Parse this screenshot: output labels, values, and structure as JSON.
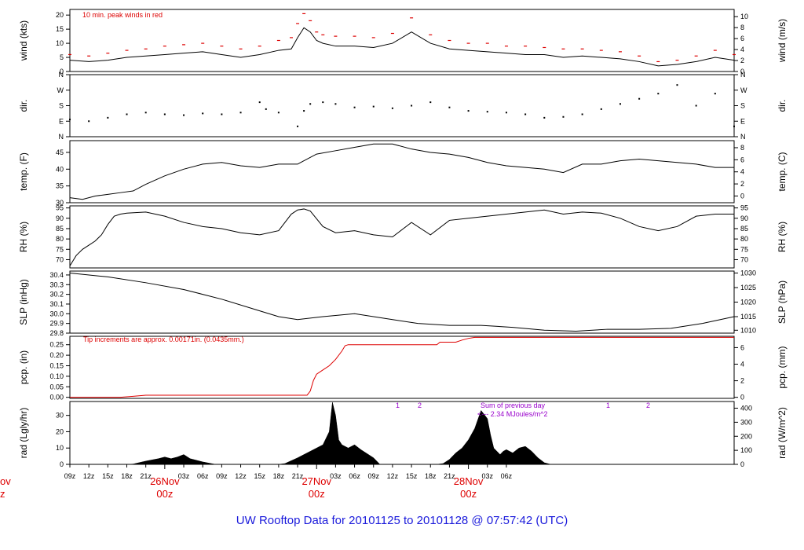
{
  "title": "UW Rooftop Data for 20101125  to  20101128 @ 07:57:42  (UTC)",
  "colors": {
    "line": "#000000",
    "peak": "#dd0000",
    "precip": "#dd0000",
    "note": "#9900cc",
    "title": "#1a1adb"
  },
  "chart_data": [
    {
      "type": "line",
      "name": "wind",
      "ylabel_left": "wind (kts)",
      "ylabel_right": "wind (m/s)",
      "ylim": [
        0,
        22
      ],
      "yticks_left": [
        0,
        5,
        10,
        15,
        20
      ],
      "yticks_right": [
        {
          "label": "0",
          "v": 0
        },
        {
          "label": "2",
          "v": 3.89
        },
        {
          "label": "4",
          "v": 7.78
        },
        {
          "label": "6",
          "v": 11.66
        },
        {
          "label": "8",
          "v": 15.55
        },
        {
          "label": "10",
          "v": 19.44
        }
      ],
      "annotation": "10 min. peak winds in red",
      "series": [
        {
          "name": "wind speed",
          "x": [
            0,
            3,
            6,
            9,
            12,
            15,
            18,
            21,
            24,
            27,
            30,
            33,
            35,
            36,
            37,
            38,
            39,
            40,
            42,
            45,
            48,
            51,
            54,
            57,
            60,
            63,
            66,
            69,
            72,
            75,
            78,
            81,
            84,
            87,
            90,
            93,
            96,
            99,
            102,
            105
          ],
          "y": [
            4,
            3.5,
            4,
            5,
            5.5,
            6,
            6.5,
            7,
            6,
            5,
            6,
            7.5,
            8,
            12,
            15.5,
            14,
            11,
            10,
            9,
            9,
            8.5,
            10,
            14,
            10,
            8,
            7.5,
            7,
            6.5,
            6,
            6,
            5,
            5.5,
            5,
            4.5,
            3.5,
            2,
            2.5,
            3.5,
            5,
            4
          ]
        },
        {
          "name": "10 min. peak",
          "x": [
            0,
            3,
            6,
            9,
            12,
            15,
            18,
            21,
            24,
            27,
            30,
            33,
            35,
            36,
            37,
            38,
            39,
            40,
            42,
            45,
            48,
            51,
            54,
            57,
            60,
            63,
            66,
            69,
            72,
            75,
            78,
            81,
            84,
            87,
            90,
            93,
            96,
            99,
            102,
            105
          ],
          "y": [
            6,
            5.5,
            6.5,
            7.5,
            8,
            9,
            9.5,
            10,
            9,
            8,
            9,
            11,
            12,
            17,
            20.5,
            18,
            14,
            13,
            12.5,
            12.5,
            12,
            13.5,
            19,
            13,
            11,
            10,
            10,
            9,
            9,
            8.5,
            8,
            8,
            7.5,
            7,
            5.5,
            3.5,
            4,
            5.5,
            7.5,
            6
          ]
        }
      ]
    },
    {
      "type": "scatter",
      "name": "dir",
      "ylabel_left": "dir.",
      "ylabel_right": "dir.",
      "ylim": [
        0,
        360
      ],
      "yticks_left": [
        {
          "label": "N",
          "v": 0
        },
        {
          "label": "E",
          "v": 90
        },
        {
          "label": "S",
          "v": 180
        },
        {
          "label": "W",
          "v": 270
        },
        {
          "label": "N",
          "v": 360
        }
      ],
      "yticks_right": [
        {
          "label": "N",
          "v": 0
        },
        {
          "label": "E",
          "v": 90
        },
        {
          "label": "S",
          "v": 180
        },
        {
          "label": "W",
          "v": 270
        },
        {
          "label": "N",
          "v": 360
        }
      ],
      "series": [
        {
          "name": "wind direction",
          "x": [
            0,
            3,
            6,
            9,
            12,
            15,
            18,
            21,
            24,
            27,
            30,
            31,
            33,
            36,
            37,
            38,
            40,
            42,
            45,
            48,
            51,
            54,
            57,
            60,
            63,
            66,
            69,
            72,
            75,
            78,
            81,
            84,
            87,
            90,
            93,
            96,
            99,
            102,
            105
          ],
          "y": [
            100,
            90,
            110,
            130,
            140,
            130,
            125,
            135,
            130,
            140,
            200,
            160,
            140,
            60,
            150,
            190,
            200,
            190,
            170,
            175,
            165,
            180,
            200,
            170,
            150,
            145,
            140,
            130,
            110,
            115,
            130,
            160,
            190,
            220,
            250,
            300,
            180,
            250,
            60
          ]
        }
      ]
    },
    {
      "type": "line",
      "name": "temp",
      "ylabel_left": "temp. (F)",
      "ylabel_right": "temp. (C)",
      "ylim": [
        30,
        48.5
      ],
      "yticks_left": [
        30,
        35,
        40,
        45
      ],
      "yticks_right": [
        {
          "label": "0",
          "v": 32
        },
        {
          "label": "2",
          "v": 35.6
        },
        {
          "label": "4",
          "v": 39.2
        },
        {
          "label": "6",
          "v": 42.8
        },
        {
          "label": "8",
          "v": 46.4
        }
      ],
      "series": [
        {
          "name": "temperature",
          "x": [
            0,
            2,
            4,
            6,
            8,
            10,
            12,
            15,
            18,
            21,
            24,
            27,
            30,
            33,
            36,
            39,
            42,
            45,
            48,
            51,
            54,
            57,
            60,
            63,
            66,
            69,
            72,
            75,
            78,
            81,
            84,
            87,
            90,
            93,
            96,
            99,
            102,
            105
          ],
          "y": [
            31.5,
            31,
            32,
            32.5,
            33,
            33.5,
            35.5,
            38,
            40,
            41.5,
            42,
            41,
            40.5,
            41.5,
            41.5,
            44.5,
            45.5,
            46.5,
            47.5,
            47.5,
            46,
            45,
            44.5,
            43.5,
            42,
            41,
            40.5,
            40,
            39,
            41.5,
            41.5,
            42.5,
            43,
            42.5,
            42,
            41.5,
            40.5,
            40.5
          ]
        }
      ]
    },
    {
      "type": "line",
      "name": "rh",
      "ylabel_left": "RH (%)",
      "ylabel_right": "RH (%)",
      "ylim": [
        66,
        96
      ],
      "yticks_left": [
        70,
        75,
        80,
        85,
        90,
        95
      ],
      "yticks_right": [
        70,
        75,
        80,
        85,
        90,
        95
      ],
      "series": [
        {
          "name": "relative humidity",
          "x": [
            0,
            1,
            2,
            3,
            4,
            5,
            6,
            7,
            8,
            9,
            12,
            15,
            18,
            21,
            24,
            27,
            30,
            33,
            35,
            36,
            37,
            38,
            40,
            42,
            45,
            48,
            51,
            54,
            57,
            60,
            63,
            66,
            69,
            72,
            75,
            78,
            81,
            84,
            87,
            90,
            93,
            96,
            99,
            102,
            105
          ],
          "y": [
            67,
            72,
            75,
            77,
            79,
            82,
            87,
            91,
            92,
            92.5,
            93,
            91,
            88,
            86,
            85,
            83,
            82,
            84,
            92,
            94,
            94.5,
            93.5,
            86,
            83,
            84,
            82,
            81,
            88,
            82,
            89,
            90,
            91,
            92,
            93,
            94,
            92,
            93,
            92.5,
            90,
            86,
            84,
            86,
            91,
            92,
            92
          ]
        }
      ]
    },
    {
      "type": "line",
      "name": "slp",
      "ylabel_left": "SLP (inHg)",
      "ylabel_right": "SLP (hPa)",
      "ylim": [
        29.8,
        30.44
      ],
      "yticks_left": [
        {
          "label": "29.8",
          "v": 29.8
        },
        {
          "label": "29.9",
          "v": 29.9
        },
        {
          "label": "30.0",
          "v": 30.0
        },
        {
          "label": "30.1",
          "v": 30.1
        },
        {
          "label": "30.2",
          "v": 30.2
        },
        {
          "label": "30.3",
          "v": 30.3
        },
        {
          "label": "30.4",
          "v": 30.4
        }
      ],
      "yticks_right": [
        {
          "label": "1010",
          "v": 29.83
        },
        {
          "label": "1015",
          "v": 29.97
        },
        {
          "label": "1020",
          "v": 30.12
        },
        {
          "label": "1025",
          "v": 30.27
        },
        {
          "label": "1030",
          "v": 30.42
        }
      ],
      "series": [
        {
          "name": "sea level pressure",
          "x": [
            0,
            6,
            12,
            18,
            24,
            30,
            33,
            36,
            40,
            45,
            50,
            55,
            60,
            65,
            70,
            75,
            80,
            85,
            90,
            95,
            100,
            105
          ],
          "y": [
            30.42,
            30.38,
            30.32,
            30.25,
            30.15,
            30.03,
            29.97,
            29.94,
            29.97,
            30.0,
            29.95,
            29.9,
            29.88,
            29.88,
            29.86,
            29.83,
            29.82,
            29.84,
            29.84,
            29.85,
            29.9,
            29.97
          ]
        }
      ]
    },
    {
      "type": "line",
      "name": "pcp",
      "ylabel_left": "pcp. (in)",
      "ylabel_right": "pcp. (mm)",
      "ylim": [
        -0.005,
        0.29
      ],
      "yticks_left": [
        {
          "label": "0.00",
          "v": 0
        },
        {
          "label": "0.05",
          "v": 0.05
        },
        {
          "label": "0.10",
          "v": 0.1
        },
        {
          "label": "0.15",
          "v": 0.15
        },
        {
          "label": "0.20",
          "v": 0.2
        },
        {
          "label": "0.25",
          "v": 0.25
        }
      ],
      "yticks_right": [
        {
          "label": "0",
          "v": 0
        },
        {
          "label": "2",
          "v": 0.0787
        },
        {
          "label": "4",
          "v": 0.1575
        },
        {
          "label": "6",
          "v": 0.2362
        }
      ],
      "annotation": "Tip increments are approx. 0.00171in. (0.0435mm.)",
      "series": [
        {
          "name": "accumulated precipitation",
          "x": [
            0,
            8,
            10,
            12,
            37.5,
            38,
            38.5,
            39,
            40,
            41,
            42,
            43,
            43.5,
            44,
            58,
            58.5,
            61,
            62,
            63,
            64,
            105
          ],
          "y": [
            0,
            0,
            0.005,
            0.01,
            0.01,
            0.03,
            0.08,
            0.11,
            0.13,
            0.15,
            0.18,
            0.22,
            0.245,
            0.25,
            0.25,
            0.262,
            0.262,
            0.272,
            0.28,
            0.285,
            0.285
          ]
        }
      ]
    },
    {
      "type": "area",
      "name": "rad",
      "ylabel_left": "rad (Lgly/hr)",
      "ylabel_right": "rad (W/m^2)",
      "ylim": [
        0,
        38.5
      ],
      "yticks_left": [
        0,
        10,
        20,
        30
      ],
      "yticks_right": [
        {
          "label": "0",
          "v": 0
        },
        {
          "label": "100",
          "v": 8.6
        },
        {
          "label": "200",
          "v": 17.2
        },
        {
          "label": "300",
          "v": 25.8
        },
        {
          "label": "400",
          "v": 34.4
        }
      ],
      "annotations": [
        "1",
        "2",
        "Sum of previous day",
        "<--- 2.34 MJoules/m^2",
        "1",
        "2"
      ],
      "series": [
        {
          "name": "solar radiation",
          "x": [
            0,
            9,
            10,
            12,
            14,
            15,
            16,
            17,
            18,
            19,
            21,
            23,
            33,
            34,
            36,
            38,
            40,
            41,
            41.5,
            42,
            42.5,
            43,
            44,
            45,
            46,
            48,
            49,
            58,
            59,
            60,
            61,
            62,
            63,
            64,
            65,
            66,
            66.5,
            67,
            67.5,
            68,
            68.5,
            69,
            70,
            71,
            72,
            73,
            74,
            75,
            76,
            105
          ],
          "y": [
            0,
            0,
            0.2,
            2,
            3.5,
            4.5,
            3.5,
            4.5,
            6,
            3.5,
            1.5,
            0,
            0,
            0.5,
            4,
            8,
            12,
            20,
            38,
            30,
            15,
            12,
            10,
            12,
            9,
            4,
            0,
            0,
            0.5,
            3,
            7,
            10,
            15,
            22,
            33,
            28,
            18,
            10,
            8,
            6,
            8,
            9,
            7,
            10,
            11,
            8,
            4,
            1,
            0,
            0
          ]
        }
      ]
    }
  ],
  "x_axis": {
    "ticks": [
      {
        "label": "09z",
        "h": 0
      },
      {
        "label": "12z",
        "h": 3
      },
      {
        "label": "15z",
        "h": 6
      },
      {
        "label": "18z",
        "h": 9
      },
      {
        "label": "21z",
        "h": 12
      },
      {
        "label": "03z",
        "h": 18
      },
      {
        "label": "06z",
        "h": 21
      },
      {
        "label": "09z",
        "h": 24
      },
      {
        "label": "12z",
        "h": 27
      },
      {
        "label": "15z",
        "h": 30
      },
      {
        "label": "18z",
        "h": 33
      },
      {
        "label": "21z",
        "h": 36
      },
      {
        "label": "03z",
        "h": 42
      },
      {
        "label": "06z",
        "h": 45
      },
      {
        "label": "09z",
        "h": 48
      },
      {
        "label": "12z",
        "h": 51
      },
      {
        "label": "15z",
        "h": 54
      },
      {
        "label": "18z",
        "h": 57
      },
      {
        "label": "21z",
        "h": 60
      },
      {
        "label": "03z",
        "h": 66
      },
      {
        "label": "06z",
        "h": 69
      }
    ],
    "days": [
      {
        "date": "ov",
        "time": "z",
        "h": -24
      },
      {
        "date": "26Nov",
        "time": "00z",
        "h": 15
      },
      {
        "date": "27Nov",
        "time": "00z",
        "h": 39
      },
      {
        "date": "28Nov",
        "time": "00z",
        "h": 63
      }
    ]
  }
}
